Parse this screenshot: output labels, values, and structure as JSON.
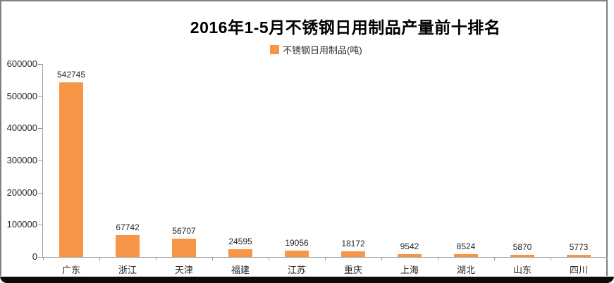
{
  "frame": {
    "border_color": "#808080",
    "bottom_bar_color": "#0a0a0a",
    "background": "#ffffff"
  },
  "chart_data": {
    "type": "bar",
    "title": "2016年1-5月不锈钢日用制品产量前十排名",
    "legend": [
      "不锈钢日用制品(吨)"
    ],
    "legend_position": "top-center",
    "categories": [
      "广东",
      "浙江",
      "天津",
      "福建",
      "江苏",
      "重庆",
      "上海",
      "湖北",
      "山东",
      "四川"
    ],
    "values": [
      542745,
      67742,
      56707,
      24595,
      19056,
      18172,
      9542,
      8524,
      5870,
      5773
    ],
    "data_labels": [
      "542745",
      "67742",
      "56707",
      "24595",
      "19056",
      "18172",
      "9542",
      "8524",
      "5870",
      "5773"
    ],
    "xlabel": "",
    "ylabel": "",
    "ylim": [
      0,
      600000
    ],
    "ytick_interval": 100000,
    "ytick_labels": [
      "600000",
      "500000",
      "400000",
      "300000",
      "200000",
      "100000",
      "0"
    ],
    "grid": false,
    "bar_color": "#F79646",
    "axis_color": "#9b9b9b",
    "title_color": "#000000",
    "label_color": "#262626"
  }
}
